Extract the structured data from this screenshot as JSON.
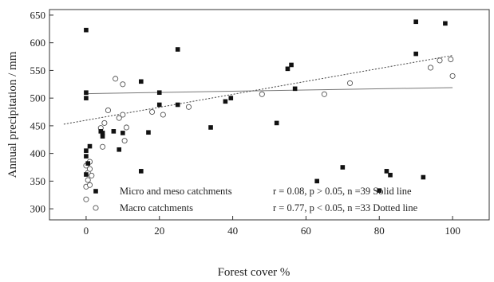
{
  "chart_data": {
    "type": "scatter",
    "title": "",
    "xlabel": "Forest cover %",
    "ylabel": "Annual precipitation / mm",
    "xlim": [
      -10,
      110
    ],
    "ylim": [
      280,
      660
    ],
    "x_ticks": [
      0,
      20,
      40,
      60,
      80,
      100
    ],
    "y_ticks": [
      300,
      350,
      400,
      450,
      500,
      550,
      600,
      650
    ],
    "grid": false,
    "legend_position": "bottom-left",
    "series": [
      {
        "name": "Micro  and meso catchments",
        "marker": "filled-square",
        "stats": "r = 0.08,  p > 0.05, n =39  Solid line",
        "trend": {
          "style": "solid",
          "x": [
            0,
            100
          ],
          "y": [
            508,
            519
          ]
        },
        "points": [
          {
            "x": 0,
            "y": 623
          },
          {
            "x": 0,
            "y": 510
          },
          {
            "x": 0,
            "y": 500
          },
          {
            "x": 0,
            "y": 405
          },
          {
            "x": 0,
            "y": 395
          },
          {
            "x": 0.5,
            "y": 382
          },
          {
            "x": 0,
            "y": 362
          },
          {
            "x": 1,
            "y": 413
          },
          {
            "x": 4,
            "y": 440
          },
          {
            "x": 4.5,
            "y": 437
          },
          {
            "x": 4.5,
            "y": 431
          },
          {
            "x": 7.5,
            "y": 440
          },
          {
            "x": 9,
            "y": 407
          },
          {
            "x": 10,
            "y": 437
          },
          {
            "x": 15,
            "y": 530
          },
          {
            "x": 15,
            "y": 368
          },
          {
            "x": 17,
            "y": 438
          },
          {
            "x": 20,
            "y": 510
          },
          {
            "x": 20,
            "y": 488
          },
          {
            "x": 25,
            "y": 588
          },
          {
            "x": 25,
            "y": 488
          },
          {
            "x": 34,
            "y": 447
          },
          {
            "x": 38,
            "y": 494
          },
          {
            "x": 39.5,
            "y": 500
          },
          {
            "x": 52,
            "y": 455
          },
          {
            "x": 55,
            "y": 553
          },
          {
            "x": 56,
            "y": 560
          },
          {
            "x": 57,
            "y": 517
          },
          {
            "x": 63,
            "y": 350
          },
          {
            "x": 70,
            "y": 375
          },
          {
            "x": 80,
            "y": 333
          },
          {
            "x": 82,
            "y": 368
          },
          {
            "x": 83,
            "y": 361
          },
          {
            "x": 90,
            "y": 638
          },
          {
            "x": 90,
            "y": 580
          },
          {
            "x": 92,
            "y": 357
          },
          {
            "x": 98,
            "y": 635
          }
        ]
      },
      {
        "name": "Macro catchments",
        "marker": "open-circle",
        "stats": "r = 0.77,  p < 0.05, n =33  Dotted line",
        "trend": {
          "style": "dotted",
          "x": [
            -6,
            100
          ],
          "y": [
            453,
            577
          ]
        },
        "points": [
          {
            "x": 0,
            "y": 317
          },
          {
            "x": 0,
            "y": 340
          },
          {
            "x": 0.5,
            "y": 352
          },
          {
            "x": 0.5,
            "y": 365
          },
          {
            "x": 1,
            "y": 372
          },
          {
            "x": 0,
            "y": 378
          },
          {
            "x": 1,
            "y": 385
          },
          {
            "x": 1,
            "y": 343
          },
          {
            "x": 1.5,
            "y": 360
          },
          {
            "x": 4,
            "y": 446
          },
          {
            "x": 4.5,
            "y": 412
          },
          {
            "x": 5,
            "y": 455
          },
          {
            "x": 6,
            "y": 478
          },
          {
            "x": 8,
            "y": 535
          },
          {
            "x": 9,
            "y": 464
          },
          {
            "x": 10,
            "y": 525
          },
          {
            "x": 10,
            "y": 470
          },
          {
            "x": 10.5,
            "y": 423
          },
          {
            "x": 11,
            "y": 447
          },
          {
            "x": 18,
            "y": 475
          },
          {
            "x": 21,
            "y": 470
          },
          {
            "x": 28,
            "y": 484
          },
          {
            "x": 48,
            "y": 507
          },
          {
            "x": 65,
            "y": 507
          },
          {
            "x": 72,
            "y": 527
          },
          {
            "x": 94,
            "y": 555
          },
          {
            "x": 96.5,
            "y": 568
          },
          {
            "x": 99.5,
            "y": 570
          },
          {
            "x": 100,
            "y": 540
          }
        ]
      }
    ]
  }
}
